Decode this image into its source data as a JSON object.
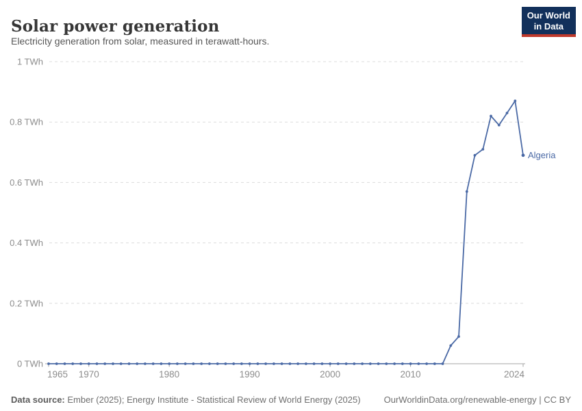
{
  "header": {
    "title": "Solar power generation",
    "subtitle": "Electricity generation from solar, measured in terawatt-hours."
  },
  "logo": {
    "line1": "Our World",
    "line2": "in Data",
    "bg_color": "#12305b",
    "stripe_color": "#c0392b"
  },
  "colors": {
    "line": "#4a69a5",
    "grid": "#dcdcdc",
    "axis": "#a5a5a5",
    "tick_label": "#8c8c8c"
  },
  "chart_data": {
    "type": "line",
    "title": "Solar power generation",
    "unit": "TWh",
    "xlabel": "",
    "ylabel": "",
    "xlim": [
      1965,
      2024
    ],
    "ylim": [
      0,
      1
    ],
    "grid": "horizontal-dashed",
    "legend_position": "end-of-line-label",
    "yticks": [
      {
        "value": 0,
        "label": "0 TWh"
      },
      {
        "value": 0.2,
        "label": "0.2 TWh"
      },
      {
        "value": 0.4,
        "label": "0.4 TWh"
      },
      {
        "value": 0.6,
        "label": "0.6 TWh"
      },
      {
        "value": 0.8,
        "label": "0.8 TWh"
      },
      {
        "value": 1,
        "label": "1 TWh"
      }
    ],
    "xticks": [
      {
        "value": 1965,
        "label": "1965"
      },
      {
        "value": 1970,
        "label": "1970"
      },
      {
        "value": 1980,
        "label": "1980"
      },
      {
        "value": 1990,
        "label": "1990"
      },
      {
        "value": 2000,
        "label": "2000"
      },
      {
        "value": 2010,
        "label": "2010"
      },
      {
        "value": 2024,
        "label": "2024"
      }
    ],
    "series": [
      {
        "name": "Algeria",
        "color": "#4a69a5",
        "x": [
          1965,
          1966,
          1967,
          1968,
          1969,
          1970,
          1971,
          1972,
          1973,
          1974,
          1975,
          1976,
          1977,
          1978,
          1979,
          1980,
          1981,
          1982,
          1983,
          1984,
          1985,
          1986,
          1987,
          1988,
          1989,
          1990,
          1991,
          1992,
          1993,
          1994,
          1995,
          1996,
          1997,
          1998,
          1999,
          2000,
          2001,
          2002,
          2003,
          2004,
          2005,
          2006,
          2007,
          2008,
          2009,
          2010,
          2011,
          2012,
          2013,
          2014,
          2015,
          2016,
          2017,
          2018,
          2019,
          2020,
          2021,
          2022,
          2023,
          2024
        ],
        "values": [
          0,
          0,
          0,
          0,
          0,
          0,
          0,
          0,
          0,
          0,
          0,
          0,
          0,
          0,
          0,
          0,
          0,
          0,
          0,
          0,
          0,
          0,
          0,
          0,
          0,
          0,
          0,
          0,
          0,
          0,
          0,
          0,
          0,
          0,
          0,
          0,
          0,
          0,
          0,
          0,
          0,
          0,
          0,
          0,
          0,
          0,
          0,
          0,
          0,
          0,
          0.06,
          0.09,
          0.57,
          0.69,
          0.71,
          0.82,
          0.79,
          0.83,
          0.87,
          0.69
        ]
      }
    ]
  },
  "footer": {
    "source_label": "Data source:",
    "source_text": " Ember (2025); Energy Institute - Statistical Review of World Energy (2025)",
    "link_text": "OurWorldinData.org/renewable-energy | CC BY"
  }
}
